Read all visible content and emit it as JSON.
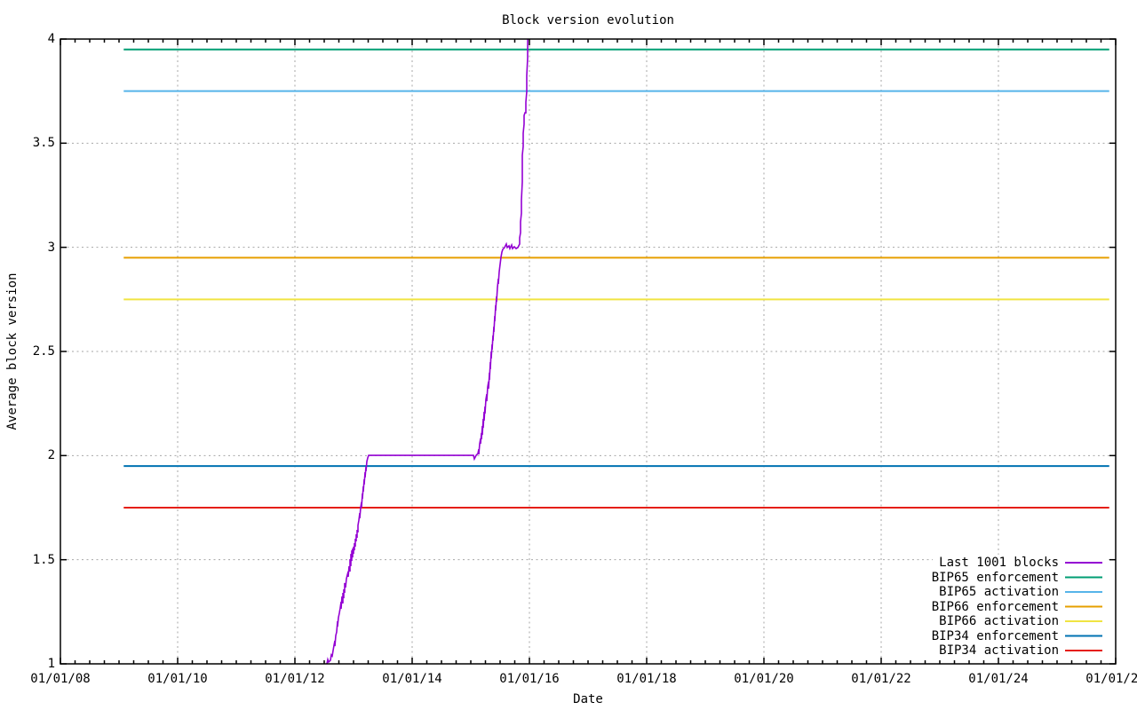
{
  "chart_data": {
    "type": "line",
    "title": "Block version evolution",
    "xlabel": "Date",
    "ylabel": "Average block version",
    "xlim_years": [
      2008,
      2026
    ],
    "ylim": [
      1,
      4
    ],
    "grid": true,
    "x_date_format": "dd/mm/yy",
    "x_major_ticks": [
      {
        "year": 2008,
        "label": "01/01/08"
      },
      {
        "year": 2010,
        "label": "01/01/10"
      },
      {
        "year": 2012,
        "label": "01/01/12"
      },
      {
        "year": 2014,
        "label": "01/01/14"
      },
      {
        "year": 2016,
        "label": "01/01/16"
      },
      {
        "year": 2018,
        "label": "01/01/18"
      },
      {
        "year": 2020,
        "label": "01/01/20"
      },
      {
        "year": 2022,
        "label": "01/01/22"
      },
      {
        "year": 2024,
        "label": "01/01/24"
      },
      {
        "year": 2026,
        "label": "01/01/26"
      }
    ],
    "x_minor_tick_interval_years": 0.25,
    "y_ticks": [
      {
        "value": 1,
        "label": "1"
      },
      {
        "value": 1.5,
        "label": "1.5"
      },
      {
        "value": 2,
        "label": "2"
      },
      {
        "value": 2.5,
        "label": "2.5"
      },
      {
        "value": 3,
        "label": "3"
      },
      {
        "value": 3.5,
        "label": "3.5"
      },
      {
        "value": 4,
        "label": "4"
      }
    ],
    "legend_position": "bottom-right",
    "legend": [
      {
        "label": "Last 1001 blocks",
        "color": "#9400d3"
      },
      {
        "label": "BIP65 enforcement",
        "color": "#009e73"
      },
      {
        "label": "BIP65 activation",
        "color": "#56b4e9"
      },
      {
        "label": "BIP66 enforcement",
        "color": "#e69f00"
      },
      {
        "label": "BIP66 activation",
        "color": "#f0e442"
      },
      {
        "label": "BIP34 enforcement",
        "color": "#0072b2"
      },
      {
        "label": "BIP34 activation",
        "color": "#e51e10"
      }
    ],
    "hlines": [
      {
        "name": "BIP65 enforcement",
        "y": 3.95,
        "x_start": 2009.08,
        "x_end": 2025.89,
        "color": "#009e73"
      },
      {
        "name": "BIP65 activation",
        "y": 3.75,
        "x_start": 2009.08,
        "x_end": 2025.89,
        "color": "#56b4e9"
      },
      {
        "name": "BIP66 enforcement",
        "y": 2.95,
        "x_start": 2009.08,
        "x_end": 2025.89,
        "color": "#e69f00"
      },
      {
        "name": "BIP66 activation",
        "y": 2.75,
        "x_start": 2009.08,
        "x_end": 2025.89,
        "color": "#f0e442"
      },
      {
        "name": "BIP34 enforcement",
        "y": 1.95,
        "x_start": 2009.08,
        "x_end": 2025.89,
        "color": "#0072b2"
      },
      {
        "name": "BIP34 activation",
        "y": 1.75,
        "x_start": 2009.08,
        "x_end": 2025.89,
        "color": "#e51e10"
      }
    ],
    "series": [
      {
        "name": "Last 1001 blocks",
        "color": "#9400d3",
        "points": [
          [
            2012.545,
            1.0
          ],
          [
            2012.561,
            1.021
          ],
          [
            2012.576,
            1.009
          ],
          [
            2012.606,
            1.017
          ],
          [
            2012.621,
            1.043
          ],
          [
            2012.636,
            1.038
          ],
          [
            2012.652,
            1.064
          ],
          [
            2012.667,
            1.089
          ],
          [
            2012.682,
            1.111
          ],
          [
            2012.682,
            1.085
          ],
          [
            2012.697,
            1.136
          ],
          [
            2012.712,
            1.153
          ],
          [
            2012.727,
            1.205
          ],
          [
            2012.727,
            1.179
          ],
          [
            2012.742,
            1.222
          ],
          [
            2012.758,
            1.243
          ],
          [
            2012.773,
            1.268
          ],
          [
            2012.788,
            1.298
          ],
          [
            2012.788,
            1.264
          ],
          [
            2012.803,
            1.324
          ],
          [
            2012.818,
            1.29
          ],
          [
            2012.818,
            1.341
          ],
          [
            2012.833,
            1.315
          ],
          [
            2012.833,
            1.358
          ],
          [
            2012.848,
            1.341
          ],
          [
            2012.848,
            1.388
          ],
          [
            2012.864,
            1.366
          ],
          [
            2012.879,
            1.409
          ],
          [
            2012.894,
            1.426
          ],
          [
            2012.909,
            1.443
          ],
          [
            2012.909,
            1.418
          ],
          [
            2012.924,
            1.469
          ],
          [
            2012.939,
            1.443
          ],
          [
            2012.939,
            1.503
          ],
          [
            2012.955,
            1.469
          ],
          [
            2012.955,
            1.528
          ],
          [
            2012.97,
            1.494
          ],
          [
            2012.97,
            1.545
          ],
          [
            2012.985,
            1.511
          ],
          [
            2012.985,
            1.554
          ],
          [
            2013.0,
            1.528
          ],
          [
            2013.0,
            1.563
          ],
          [
            2013.015,
            1.545
          ],
          [
            2013.015,
            1.58
          ],
          [
            2013.03,
            1.563
          ],
          [
            2013.03,
            1.601
          ],
          [
            2013.045,
            1.588
          ],
          [
            2013.045,
            1.622
          ],
          [
            2013.061,
            1.605
          ],
          [
            2013.061,
            1.643
          ],
          [
            2013.076,
            1.631
          ],
          [
            2013.076,
            1.665
          ],
          [
            2013.091,
            1.69
          ],
          [
            2013.106,
            1.724
          ],
          [
            2013.106,
            1.699
          ],
          [
            2013.121,
            1.75
          ],
          [
            2013.136,
            1.776
          ],
          [
            2013.136,
            1.75
          ],
          [
            2013.152,
            1.818
          ],
          [
            2013.152,
            1.793
          ],
          [
            2013.167,
            1.852
          ],
          [
            2013.167,
            1.827
          ],
          [
            2013.182,
            1.886
          ],
          [
            2013.182,
            1.861
          ],
          [
            2013.197,
            1.92
          ],
          [
            2013.197,
            1.895
          ],
          [
            2013.212,
            1.946
          ],
          [
            2013.212,
            1.925
          ],
          [
            2013.227,
            1.972
          ],
          [
            2013.242,
            1.989
          ],
          [
            2013.258,
            2.001
          ],
          [
            2015.045,
            2.001
          ],
          [
            2015.061,
            1.984
          ],
          [
            2015.091,
            2.001
          ],
          [
            2015.121,
            2.01
          ],
          [
            2015.136,
            2.031
          ],
          [
            2015.136,
            2.006
          ],
          [
            2015.152,
            2.057
          ],
          [
            2015.167,
            2.082
          ],
          [
            2015.167,
            2.057
          ],
          [
            2015.182,
            2.108
          ],
          [
            2015.182,
            2.078
          ],
          [
            2015.197,
            2.142
          ],
          [
            2015.197,
            2.099
          ],
          [
            2015.212,
            2.176
          ],
          [
            2015.212,
            2.133
          ],
          [
            2015.227,
            2.21
          ],
          [
            2015.227,
            2.168
          ],
          [
            2015.242,
            2.236
          ],
          [
            2015.242,
            2.202
          ],
          [
            2015.258,
            2.27
          ],
          [
            2015.273,
            2.295
          ],
          [
            2015.273,
            2.261
          ],
          [
            2015.288,
            2.329
          ],
          [
            2015.303,
            2.355
          ],
          [
            2015.303,
            2.321
          ],
          [
            2015.318,
            2.398
          ],
          [
            2015.318,
            2.364
          ],
          [
            2015.333,
            2.449
          ],
          [
            2015.333,
            2.415
          ],
          [
            2015.348,
            2.5
          ],
          [
            2015.348,
            2.466
          ],
          [
            2015.364,
            2.534
          ],
          [
            2015.364,
            2.508
          ],
          [
            2015.379,
            2.577
          ],
          [
            2015.379,
            2.551
          ],
          [
            2015.394,
            2.619
          ],
          [
            2015.394,
            2.594
          ],
          [
            2015.409,
            2.67
          ],
          [
            2015.409,
            2.645
          ],
          [
            2015.424,
            2.722
          ],
          [
            2015.424,
            2.696
          ],
          [
            2015.439,
            2.764
          ],
          [
            2015.439,
            2.738
          ],
          [
            2015.455,
            2.807
          ],
          [
            2015.47,
            2.849
          ],
          [
            2015.47,
            2.824
          ],
          [
            2015.485,
            2.883
          ],
          [
            2015.5,
            2.918
          ],
          [
            2015.515,
            2.952
          ],
          [
            2015.53,
            2.977
          ],
          [
            2015.545,
            2.99
          ],
          [
            2015.576,
            2.999
          ],
          [
            2015.606,
            3.016
          ],
          [
            2015.621,
            2.999
          ],
          [
            2015.652,
            3.007
          ],
          [
            2015.667,
            2.994
          ],
          [
            2015.697,
            3.011
          ],
          [
            2015.712,
            2.994
          ],
          [
            2015.742,
            3.003
          ],
          [
            2015.773,
            2.994
          ],
          [
            2015.803,
            2.999
          ],
          [
            2015.833,
            3.016
          ],
          [
            2015.833,
            3.045
          ],
          [
            2015.848,
            3.071
          ],
          [
            2015.848,
            3.122
          ],
          [
            2015.864,
            3.164
          ],
          [
            2015.864,
            3.228
          ],
          [
            2015.879,
            3.314
          ],
          [
            2015.879,
            3.442
          ],
          [
            2015.894,
            3.484
          ],
          [
            2015.894,
            3.548
          ],
          [
            2015.909,
            3.591
          ],
          [
            2015.909,
            3.633
          ],
          [
            2015.924,
            3.646
          ],
          [
            2015.939,
            3.646
          ],
          [
            2015.939,
            3.697
          ],
          [
            2015.955,
            3.748
          ],
          [
            2015.955,
            3.825
          ],
          [
            2015.97,
            3.91
          ],
          [
            2015.97,
            3.974
          ],
          [
            2015.971,
            4.0
          ]
        ]
      }
    ]
  }
}
